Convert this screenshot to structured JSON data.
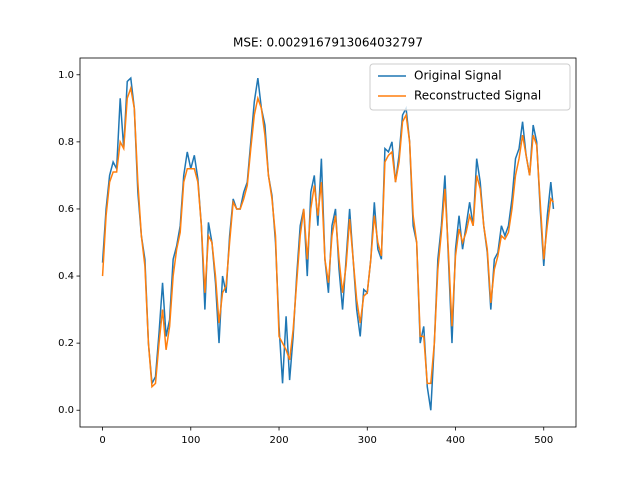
{
  "chart_data": {
    "type": "line",
    "title": "MSE: 0.0029167913064032797",
    "x": [
      0,
      4,
      8,
      12,
      16,
      20,
      24,
      28,
      32,
      36,
      40,
      44,
      48,
      52,
      56,
      60,
      64,
      68,
      72,
      76,
      80,
      84,
      88,
      92,
      96,
      100,
      104,
      108,
      112,
      116,
      120,
      124,
      128,
      132,
      136,
      140,
      144,
      148,
      152,
      156,
      160,
      164,
      168,
      172,
      176,
      180,
      184,
      188,
      192,
      196,
      200,
      204,
      208,
      212,
      216,
      220,
      224,
      228,
      232,
      236,
      240,
      244,
      248,
      252,
      256,
      260,
      264,
      268,
      272,
      276,
      280,
      284,
      288,
      292,
      296,
      300,
      304,
      308,
      312,
      316,
      320,
      324,
      328,
      332,
      336,
      340,
      344,
      348,
      352,
      356,
      360,
      364,
      368,
      372,
      376,
      380,
      384,
      388,
      392,
      396,
      400,
      404,
      408,
      412,
      416,
      420,
      424,
      428,
      432,
      436,
      440,
      444,
      448,
      452,
      456,
      460,
      464,
      468,
      472,
      476,
      480,
      484,
      488,
      492,
      496,
      500,
      504,
      508,
      511
    ],
    "series": [
      {
        "name": "Original Signal",
        "color": "#1f77b4",
        "values": [
          0.44,
          0.6,
          0.7,
          0.74,
          0.72,
          0.93,
          0.78,
          0.98,
          0.99,
          0.9,
          0.65,
          0.52,
          0.45,
          0.2,
          0.08,
          0.1,
          0.23,
          0.38,
          0.22,
          0.27,
          0.45,
          0.49,
          0.55,
          0.7,
          0.77,
          0.72,
          0.76,
          0.69,
          0.55,
          0.3,
          0.56,
          0.5,
          0.38,
          0.2,
          0.4,
          0.35,
          0.52,
          0.63,
          0.6,
          0.6,
          0.65,
          0.68,
          0.8,
          0.92,
          0.99,
          0.9,
          0.85,
          0.7,
          0.64,
          0.5,
          0.25,
          0.08,
          0.28,
          0.09,
          0.22,
          0.4,
          0.55,
          0.6,
          0.4,
          0.65,
          0.7,
          0.55,
          0.75,
          0.45,
          0.35,
          0.55,
          0.6,
          0.42,
          0.3,
          0.45,
          0.6,
          0.45,
          0.3,
          0.22,
          0.36,
          0.35,
          0.45,
          0.62,
          0.48,
          0.45,
          0.78,
          0.77,
          0.8,
          0.68,
          0.76,
          0.88,
          0.9,
          0.8,
          0.55,
          0.5,
          0.2,
          0.25,
          0.07,
          0.0,
          0.2,
          0.45,
          0.55,
          0.7,
          0.45,
          0.2,
          0.48,
          0.58,
          0.48,
          0.55,
          0.62,
          0.55,
          0.75,
          0.68,
          0.55,
          0.47,
          0.3,
          0.45,
          0.47,
          0.55,
          0.52,
          0.55,
          0.63,
          0.75,
          0.78,
          0.86,
          0.76,
          0.7,
          0.85,
          0.8,
          0.6,
          0.43,
          0.58,
          0.68,
          0.6
        ]
      },
      {
        "name": "Reconstructed Signal",
        "color": "#ff7f0e",
        "values": [
          0.4,
          0.58,
          0.68,
          0.71,
          0.71,
          0.8,
          0.78,
          0.93,
          0.96,
          0.9,
          0.68,
          0.52,
          0.43,
          0.2,
          0.07,
          0.08,
          0.2,
          0.3,
          0.18,
          0.25,
          0.4,
          0.48,
          0.53,
          0.68,
          0.72,
          0.72,
          0.72,
          0.68,
          0.55,
          0.35,
          0.52,
          0.5,
          0.4,
          0.26,
          0.35,
          0.37,
          0.5,
          0.62,
          0.6,
          0.6,
          0.63,
          0.67,
          0.78,
          0.88,
          0.93,
          0.9,
          0.82,
          0.7,
          0.63,
          0.52,
          0.22,
          0.2,
          0.18,
          0.15,
          0.24,
          0.38,
          0.52,
          0.6,
          0.45,
          0.6,
          0.67,
          0.58,
          0.68,
          0.45,
          0.38,
          0.52,
          0.58,
          0.45,
          0.35,
          0.43,
          0.57,
          0.45,
          0.33,
          0.26,
          0.34,
          0.35,
          0.45,
          0.58,
          0.5,
          0.46,
          0.74,
          0.76,
          0.77,
          0.68,
          0.74,
          0.86,
          0.88,
          0.8,
          0.58,
          0.5,
          0.22,
          0.22,
          0.08,
          0.08,
          0.2,
          0.42,
          0.53,
          0.66,
          0.47,
          0.25,
          0.46,
          0.54,
          0.5,
          0.53,
          0.58,
          0.55,
          0.7,
          0.66,
          0.55,
          0.48,
          0.32,
          0.42,
          0.46,
          0.52,
          0.51,
          0.53,
          0.6,
          0.7,
          0.75,
          0.82,
          0.76,
          0.7,
          0.82,
          0.79,
          0.62,
          0.45,
          0.55,
          0.63,
          0.62
        ]
      }
    ],
    "xlim": [
      -25.55,
      536.55
    ],
    "ylim": [
      -0.05,
      1.05
    ],
    "xticks": [
      0,
      100,
      200,
      300,
      400,
      500
    ],
    "yticks": [
      {
        "value": 0,
        "label": "0.0"
      },
      0.2,
      0.4,
      0.6,
      0.8,
      {
        "value": 1,
        "label": "1.0"
      }
    ],
    "legend": "upper right"
  }
}
